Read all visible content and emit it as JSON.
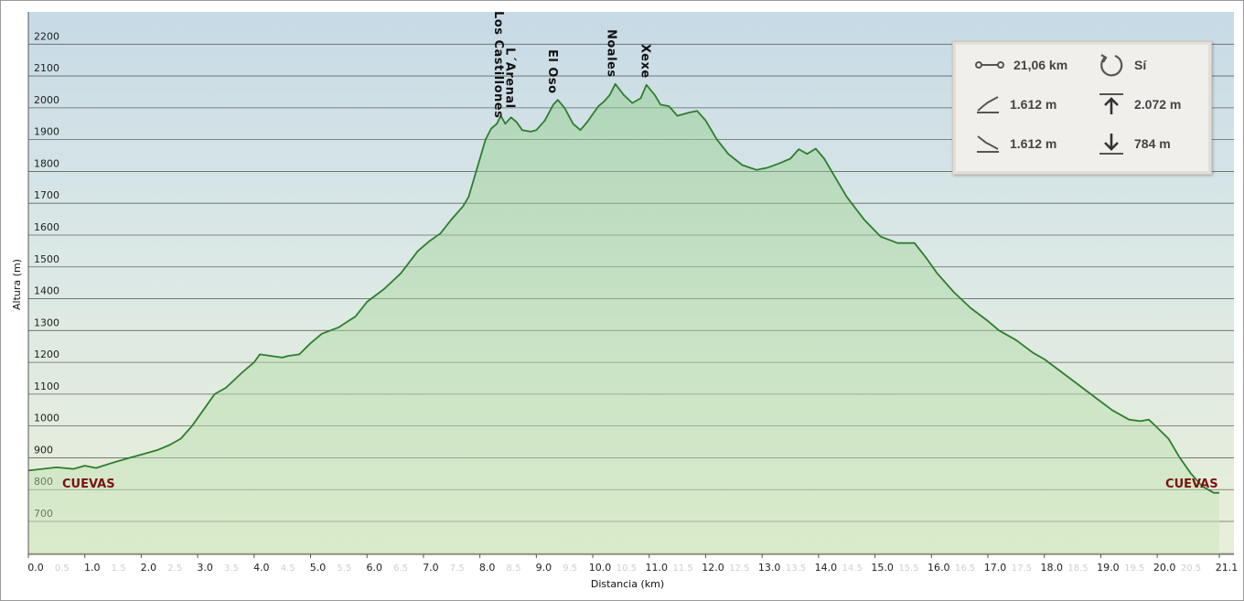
{
  "chart_data": {
    "type": "area",
    "xlabel": "Distancia (km)",
    "ylabel": "Altura (m)",
    "xlim": [
      0,
      21.1
    ],
    "ylim": [
      600,
      2300
    ],
    "y_ticks": [
      700,
      800,
      900,
      1000,
      1100,
      1200,
      1300,
      1400,
      1500,
      1600,
      1700,
      1800,
      1900,
      2000,
      2100,
      2200
    ],
    "x_ticks": [
      {
        "value": 0,
        "label": "0.0"
      },
      {
        "value": 1,
        "label": "1.0"
      },
      {
        "value": 2,
        "label": "2.0"
      },
      {
        "value": 3,
        "label": "3.0"
      },
      {
        "value": 4,
        "label": "4.0"
      },
      {
        "value": 5,
        "label": "5.0"
      },
      {
        "value": 6,
        "label": "6.0"
      },
      {
        "value": 7,
        "label": "7.0"
      },
      {
        "value": 8,
        "label": "8.0"
      },
      {
        "value": 9,
        "label": "9.0"
      },
      {
        "value": 10,
        "label": "10.0"
      },
      {
        "value": 11,
        "label": "11.0"
      },
      {
        "value": 12,
        "label": "12.0"
      },
      {
        "value": 13,
        "label": "13.0"
      },
      {
        "value": 14,
        "label": "14.0"
      },
      {
        "value": 15,
        "label": "15.0"
      },
      {
        "value": 16,
        "label": "16.0"
      },
      {
        "value": 17,
        "label": "17.0"
      },
      {
        "value": 18,
        "label": "18.0"
      },
      {
        "value": 19,
        "label": "19.0"
      },
      {
        "value": 20,
        "label": "20.0"
      },
      {
        "value": 21.1,
        "label": "21.1"
      }
    ],
    "x_minor_ticks": [
      {
        "value": 0.5,
        "label": "0.5"
      },
      {
        "value": 1.5,
        "label": "1.5"
      },
      {
        "value": 2.5,
        "label": "2.5"
      },
      {
        "value": 3.5,
        "label": "3.5"
      },
      {
        "value": 4.5,
        "label": "4.5"
      },
      {
        "value": 5.5,
        "label": "5.5"
      },
      {
        "value": 6.5,
        "label": "6.5"
      },
      {
        "value": 7.5,
        "label": "7.5"
      },
      {
        "value": 8.5,
        "label": "8.5"
      },
      {
        "value": 9.5,
        "label": "9.5"
      },
      {
        "value": 10.5,
        "label": "10.5"
      },
      {
        "value": 11.5,
        "label": "11.5"
      },
      {
        "value": 12.5,
        "label": "12.5"
      },
      {
        "value": 13.5,
        "label": "13.5"
      },
      {
        "value": 14.5,
        "label": "14.5"
      },
      {
        "value": 15.5,
        "label": "15.5"
      },
      {
        "value": 16.5,
        "label": "16.5"
      },
      {
        "value": 17.5,
        "label": "17.5"
      },
      {
        "value": 18.5,
        "label": "18.5"
      },
      {
        "value": 19.5,
        "label": "19.5"
      },
      {
        "value": 20.5,
        "label": "20.5"
      }
    ],
    "grid": true,
    "series": [
      {
        "points": [
          [
            0,
            860
          ],
          [
            0.5,
            870
          ],
          [
            0.8,
            865
          ],
          [
            1.0,
            875
          ],
          [
            1.2,
            868
          ],
          [
            1.5,
            885
          ],
          [
            1.8,
            900
          ],
          [
            2.0,
            910
          ],
          [
            2.3,
            925
          ],
          [
            2.5,
            940
          ],
          [
            2.7,
            960
          ],
          [
            2.9,
            1000
          ],
          [
            3.1,
            1050
          ],
          [
            3.3,
            1100
          ],
          [
            3.5,
            1120
          ],
          [
            3.8,
            1170
          ],
          [
            4.0,
            1200
          ],
          [
            4.1,
            1225
          ],
          [
            4.3,
            1220
          ],
          [
            4.5,
            1215
          ],
          [
            4.6,
            1220
          ],
          [
            4.8,
            1225
          ],
          [
            5.0,
            1260
          ],
          [
            5.2,
            1290
          ],
          [
            5.5,
            1310
          ],
          [
            5.8,
            1345
          ],
          [
            6.0,
            1390
          ],
          [
            6.3,
            1430
          ],
          [
            6.6,
            1480
          ],
          [
            6.9,
            1550
          ],
          [
            7.1,
            1580
          ],
          [
            7.3,
            1605
          ],
          [
            7.5,
            1650
          ],
          [
            7.7,
            1690
          ],
          [
            7.8,
            1720
          ],
          [
            7.95,
            1810
          ],
          [
            8.1,
            1900
          ],
          [
            8.2,
            1935
          ],
          [
            8.3,
            1950
          ],
          [
            8.37,
            1975
          ],
          [
            8.45,
            1950
          ],
          [
            8.55,
            1970
          ],
          [
            8.65,
            1955
          ],
          [
            8.75,
            1930
          ],
          [
            8.9,
            1925
          ],
          [
            9.0,
            1930
          ],
          [
            9.15,
            1960
          ],
          [
            9.3,
            2010
          ],
          [
            9.38,
            2025
          ],
          [
            9.5,
            2000
          ],
          [
            9.65,
            1950
          ],
          [
            9.78,
            1930
          ],
          [
            9.9,
            1955
          ],
          [
            10.1,
            2005
          ],
          [
            10.2,
            2020
          ],
          [
            10.3,
            2040
          ],
          [
            10.4,
            2075
          ],
          [
            10.55,
            2040
          ],
          [
            10.7,
            2015
          ],
          [
            10.85,
            2030
          ],
          [
            10.95,
            2072
          ],
          [
            11.1,
            2040
          ],
          [
            11.2,
            2010
          ],
          [
            11.35,
            2005
          ],
          [
            11.5,
            1975
          ],
          [
            11.7,
            1985
          ],
          [
            11.85,
            1990
          ],
          [
            12.0,
            1960
          ],
          [
            12.2,
            1900
          ],
          [
            12.4,
            1855
          ],
          [
            12.65,
            1820
          ],
          [
            12.9,
            1805
          ],
          [
            13.1,
            1812
          ],
          [
            13.3,
            1825
          ],
          [
            13.5,
            1840
          ],
          [
            13.65,
            1870
          ],
          [
            13.8,
            1855
          ],
          [
            13.95,
            1872
          ],
          [
            14.1,
            1840
          ],
          [
            14.3,
            1780
          ],
          [
            14.5,
            1720
          ],
          [
            14.8,
            1650
          ],
          [
            15.1,
            1595
          ],
          [
            15.4,
            1575
          ],
          [
            15.7,
            1575
          ],
          [
            15.9,
            1530
          ],
          [
            16.1,
            1480
          ],
          [
            16.4,
            1420
          ],
          [
            16.7,
            1370
          ],
          [
            17.0,
            1330
          ],
          [
            17.2,
            1300
          ],
          [
            17.5,
            1270
          ],
          [
            17.8,
            1230
          ],
          [
            18.0,
            1210
          ],
          [
            18.3,
            1170
          ],
          [
            18.6,
            1130
          ],
          [
            18.9,
            1090
          ],
          [
            19.2,
            1050
          ],
          [
            19.5,
            1020
          ],
          [
            19.7,
            1015
          ],
          [
            19.85,
            1020
          ],
          [
            20.0,
            995
          ],
          [
            20.2,
            960
          ],
          [
            20.4,
            900
          ],
          [
            20.6,
            850
          ],
          [
            20.8,
            810
          ],
          [
            21.0,
            790
          ],
          [
            21.1,
            790
          ]
        ]
      }
    ],
    "annotations": [
      {
        "text": "Los Castillones",
        "x": 8.35
      },
      {
        "text": "L´Arenal",
        "x": 8.55
      },
      {
        "text": "El Oso",
        "x": 9.3
      },
      {
        "text": "Noales",
        "x": 10.35
      },
      {
        "text": "Xexe",
        "x": 10.95
      },
      {
        "text": "CUEVAS",
        "x": 0.6
      },
      {
        "text": "CUEVAS",
        "x": 19.95
      }
    ]
  },
  "stats": {
    "distance": "21,06 km",
    "loop": "Sí",
    "ascent": "1.612 m",
    "max_elevation": "2.072 m",
    "descent": "1.612 m",
    "min_elevation": "784 m"
  }
}
